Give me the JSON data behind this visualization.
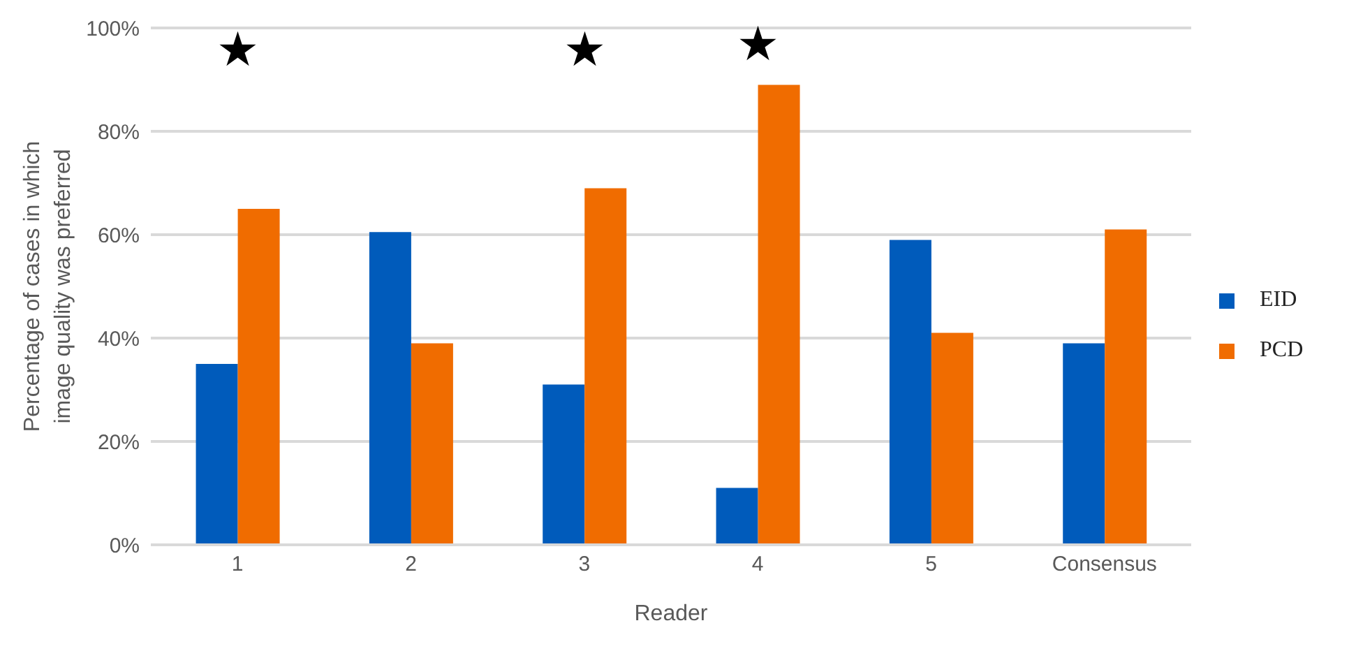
{
  "chart_data": {
    "type": "bar",
    "xlabel": "Reader",
    "ylabel": "Percentage of cases in which image quality was preferred",
    "categories": [
      "1",
      "2",
      "3",
      "4",
      "5",
      "Consensus"
    ],
    "series": [
      {
        "name": "EID",
        "color": "#005bbb",
        "values": [
          35,
          60.5,
          31,
          11,
          59,
          39
        ]
      },
      {
        "name": "PCD",
        "color": "#f06c00",
        "values": [
          65,
          39,
          69,
          89,
          41,
          61
        ]
      }
    ],
    "ylim": [
      0,
      100
    ],
    "yticks": [
      {
        "value": 0,
        "label": "0%"
      },
      {
        "value": 20,
        "label": "20%"
      },
      {
        "value": 40,
        "label": "40%"
      },
      {
        "value": 60,
        "label": "60%"
      },
      {
        "value": 80,
        "label": "80%"
      },
      {
        "value": 100,
        "label": "100%"
      }
    ],
    "grid": "y",
    "legend": "right",
    "annotations": [
      "★",
      "★",
      "★"
    ]
  }
}
